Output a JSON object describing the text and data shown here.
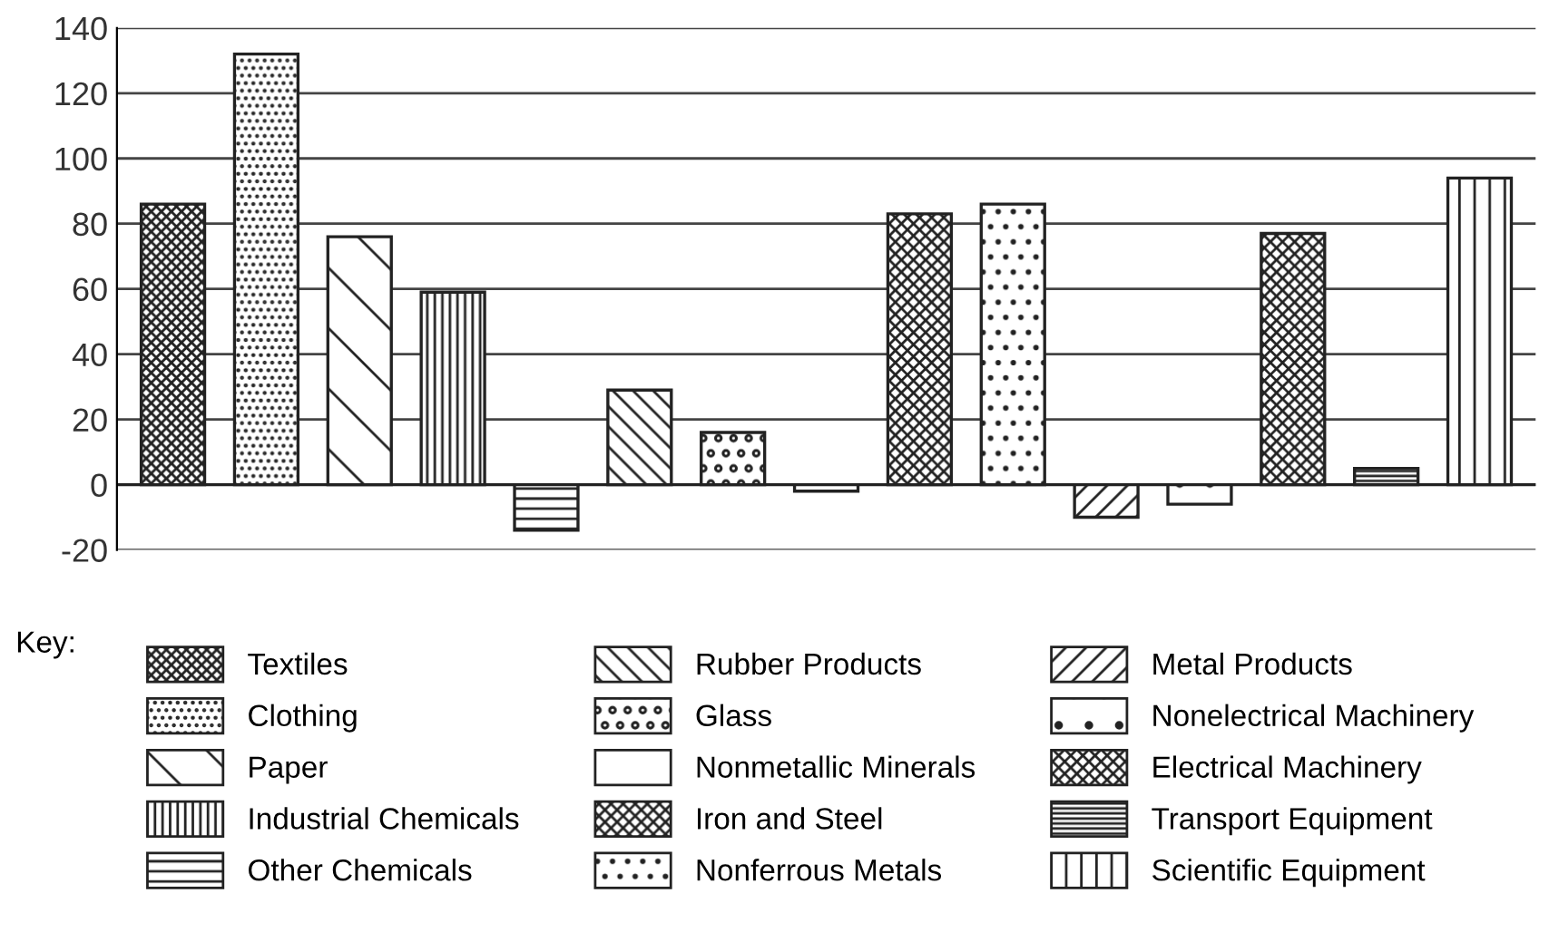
{
  "chart_data": {
    "type": "bar",
    "legend_title": "Key:",
    "categories": [
      null,
      null,
      null,
      null,
      null,
      null,
      null,
      null,
      null,
      null,
      null,
      null,
      null,
      null,
      null
    ],
    "series": [
      {
        "name": "Textiles",
        "color": "#222222",
        "values": [
          86,
          null,
          null,
          null,
          null,
          null,
          null,
          null,
          null,
          null,
          null,
          null,
          null,
          null,
          null
        ]
      },
      {
        "name": "Clothing",
        "color": "#222222",
        "values": [
          null,
          132,
          null,
          null,
          null,
          null,
          null,
          null,
          null,
          null,
          null,
          null,
          null,
          null,
          null
        ]
      },
      {
        "name": "Paper",
        "color": "#222222",
        "values": [
          null,
          null,
          76,
          null,
          null,
          null,
          null,
          null,
          null,
          null,
          null,
          null,
          null,
          null,
          null
        ]
      },
      {
        "name": "Industrial Chemicals",
        "color": "#222222",
        "values": [
          null,
          null,
          null,
          59,
          null,
          null,
          null,
          null,
          null,
          null,
          null,
          null,
          null,
          null,
          null
        ]
      },
      {
        "name": "Other Chemicals",
        "color": "#222222",
        "values": [
          null,
          null,
          null,
          null,
          -14,
          null,
          null,
          null,
          null,
          null,
          null,
          null,
          null,
          null,
          null
        ]
      },
      {
        "name": "Rubber Products",
        "color": "#222222",
        "values": [
          null,
          null,
          null,
          null,
          null,
          29,
          null,
          null,
          null,
          null,
          null,
          null,
          null,
          null,
          null
        ]
      },
      {
        "name": "Glass",
        "color": "#222222",
        "values": [
          null,
          null,
          null,
          null,
          null,
          null,
          16,
          null,
          null,
          null,
          null,
          null,
          null,
          null,
          null
        ]
      },
      {
        "name": "Nonmetallic Minerals",
        "color": "#222222",
        "values": [
          null,
          null,
          null,
          null,
          null,
          null,
          null,
          -2,
          null,
          null,
          null,
          null,
          null,
          null,
          null
        ]
      },
      {
        "name": "Iron and Steel",
        "color": "#222222",
        "values": [
          null,
          null,
          null,
          null,
          null,
          null,
          null,
          null,
          83,
          null,
          null,
          null,
          null,
          null,
          null
        ]
      },
      {
        "name": "Nonferrous Metals",
        "color": "#222222",
        "values": [
          null,
          null,
          null,
          null,
          null,
          null,
          null,
          null,
          null,
          86,
          null,
          null,
          null,
          null,
          null
        ]
      },
      {
        "name": "Metal Products",
        "color": "#222222",
        "values": [
          null,
          null,
          null,
          null,
          null,
          null,
          null,
          null,
          null,
          null,
          -10,
          null,
          null,
          null,
          null
        ]
      },
      {
        "name": "Nonelectrical Machinery",
        "color": "#222222",
        "values": [
          null,
          null,
          null,
          null,
          null,
          null,
          null,
          null,
          null,
          null,
          null,
          -6,
          null,
          null,
          null
        ]
      },
      {
        "name": "Electrical Machinery",
        "color": "#222222",
        "values": [
          null,
          null,
          null,
          null,
          null,
          null,
          null,
          null,
          null,
          null,
          null,
          null,
          77,
          null,
          null
        ]
      },
      {
        "name": "Transport Equipment",
        "color": "#222222",
        "values": [
          null,
          null,
          null,
          null,
          null,
          null,
          null,
          null,
          null,
          null,
          null,
          null,
          null,
          5,
          null
        ]
      },
      {
        "name": "Scientific Equipment",
        "color": "#222222",
        "values": [
          null,
          null,
          null,
          null,
          null,
          null,
          null,
          null,
          null,
          null,
          null,
          null,
          null,
          null,
          94
        ]
      }
    ],
    "ylim": [
      -20,
      140
    ],
    "yticks": [
      -20,
      0,
      20,
      40,
      60,
      80,
      100,
      120,
      140
    ],
    "grid": "y",
    "legend": "bottom"
  }
}
